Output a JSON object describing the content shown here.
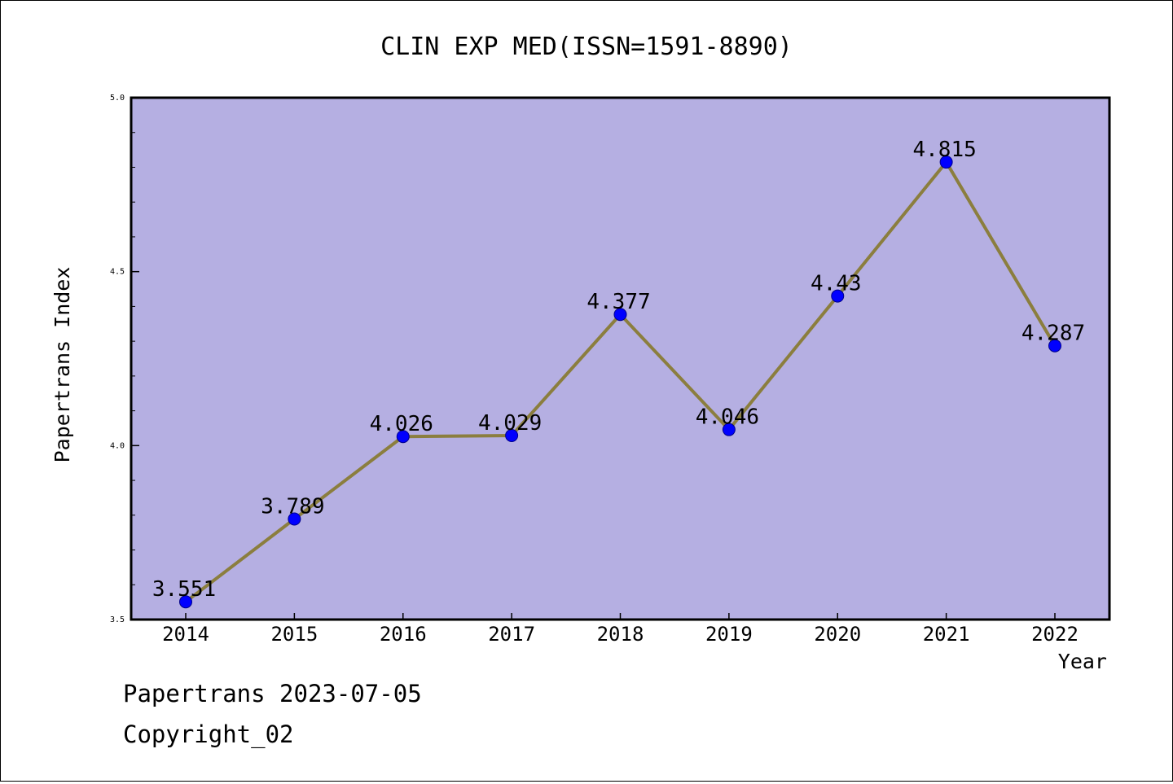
{
  "chart_data": {
    "type": "line",
    "title": "CLIN EXP MED(ISSN=1591-8890)",
    "xlabel": "Year",
    "ylabel": "Papertrans Index",
    "categories": [
      "2014",
      "2015",
      "2016",
      "2017",
      "2018",
      "2019",
      "2020",
      "2021",
      "2022"
    ],
    "series": [
      {
        "values": [
          3.551,
          3.789,
          4.026,
          4.029,
          4.377,
          4.046,
          4.43,
          4.815,
          4.287
        ],
        "labels": [
          "3.551",
          "3.789",
          "4.026",
          "4.029",
          "4.377",
          "4.046",
          "4.43",
          "4.815",
          "4.287"
        ]
      }
    ],
    "ylim": [
      3.5,
      5.0
    ],
    "y_ticks": [
      "3.5",
      "4.0",
      "4.5",
      "5.0"
    ],
    "grid": false,
    "legend": "none",
    "colors": {
      "plot_background": "#b5afe2",
      "line": "#8b7e3e",
      "marker": "#0000ff"
    }
  },
  "footer": {
    "line1": "Papertrans 2023-07-05",
    "line2": "Copyright_02"
  }
}
